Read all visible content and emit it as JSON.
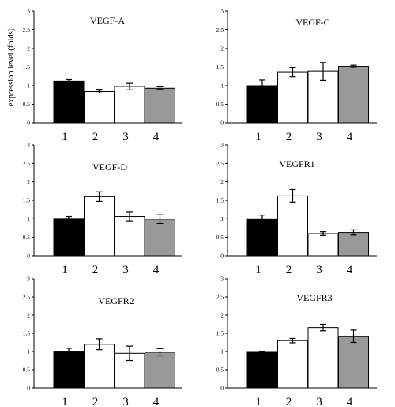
{
  "figure": {
    "ylabel": "expression level (folds)"
  },
  "chart_data": [
    {
      "type": "bar",
      "title": "VEGF-A",
      "categories": [
        "1",
        "2",
        "3",
        "4"
      ],
      "values": [
        1.12,
        0.84,
        0.98,
        0.93
      ],
      "errors": [
        0.04,
        0.04,
        0.08,
        0.04
      ],
      "fills": [
        "#000000",
        "#ffffff",
        "#ffffff",
        "#999999"
      ],
      "yticks": [
        "0",
        "0.5",
        "1",
        "1.5",
        "2",
        "2.5",
        "3"
      ],
      "ylim": [
        0,
        3
      ]
    },
    {
      "type": "bar",
      "title": "VEGF-C",
      "categories": [
        "1",
        "2",
        "3",
        "4"
      ],
      "values": [
        1.0,
        1.36,
        1.38,
        1.52
      ],
      "errors": [
        0.15,
        0.12,
        0.24,
        0.03
      ],
      "fills": [
        "#000000",
        "#ffffff",
        "#ffffff",
        "#999999"
      ],
      "yticks": [
        "0",
        "0.5",
        "1",
        "1.5",
        "2",
        "2.5",
        "3"
      ],
      "ylim": [
        0,
        3
      ]
    },
    {
      "type": "bar",
      "title": "VEGF-D",
      "categories": [
        "1",
        "2",
        "3",
        "4"
      ],
      "values": [
        1.01,
        1.6,
        1.06,
        0.99
      ],
      "errors": [
        0.05,
        0.13,
        0.12,
        0.12
      ],
      "fills": [
        "#000000",
        "#ffffff",
        "#ffffff",
        "#999999"
      ],
      "yticks": [
        "0",
        "0.5",
        "1",
        "1.5",
        "2",
        "2.5",
        "3"
      ],
      "ylim": [
        0,
        3
      ]
    },
    {
      "type": "bar",
      "title": "VEGFR1",
      "categories": [
        "1",
        "2",
        "3",
        "4"
      ],
      "values": [
        1.0,
        1.62,
        0.6,
        0.63
      ],
      "errors": [
        0.1,
        0.17,
        0.05,
        0.07
      ],
      "fills": [
        "#000000",
        "#ffffff",
        "#ffffff",
        "#999999"
      ],
      "yticks": [
        "0",
        "0.5",
        "1",
        "1.5",
        "2",
        "2.5",
        "3"
      ],
      "ylim": [
        0,
        3
      ]
    },
    {
      "type": "bar",
      "title": "VEGFR2",
      "categories": [
        "1",
        "2",
        "3",
        "4"
      ],
      "values": [
        1.01,
        1.2,
        0.95,
        0.98
      ],
      "errors": [
        0.08,
        0.15,
        0.2,
        0.1
      ],
      "fills": [
        "#000000",
        "#ffffff",
        "#ffffff",
        "#999999"
      ],
      "yticks": [
        "0",
        "0.5",
        "1",
        "1.5",
        "2",
        "2.5",
        "3"
      ],
      "ylim": [
        0,
        3
      ]
    },
    {
      "type": "bar",
      "title": "VEGFR3",
      "categories": [
        "1",
        "2",
        "3",
        "4"
      ],
      "values": [
        1.0,
        1.3,
        1.66,
        1.42
      ],
      "errors": [
        0.01,
        0.06,
        0.09,
        0.17
      ],
      "fills": [
        "#000000",
        "#ffffff",
        "#ffffff",
        "#999999"
      ],
      "yticks": [
        "0",
        "0.5",
        "1",
        "1.5",
        "2",
        "2.5",
        "3"
      ],
      "ylim": [
        0,
        3
      ]
    }
  ]
}
